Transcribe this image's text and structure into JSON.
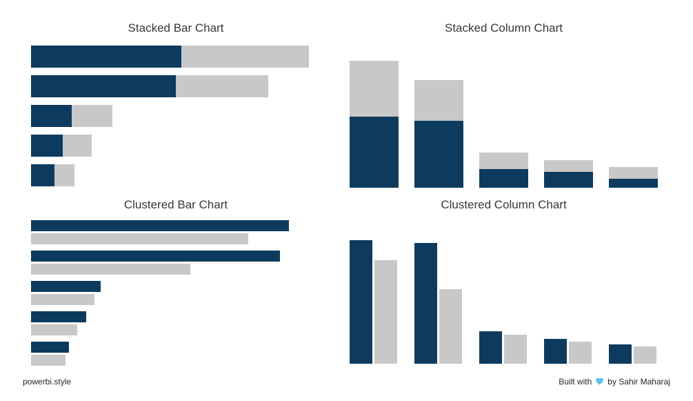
{
  "colors": {
    "navy": "#0c3b5f",
    "gray": "#c8c8c8",
    "background": "#ffffff"
  },
  "chart_data": [
    {
      "type": "bar",
      "variant": "stacked",
      "orientation": "horizontal",
      "title": "Stacked Bar Chart",
      "axis_max": 100,
      "grid": false,
      "legend": false,
      "series": [
        {
          "name": "navy",
          "color": "#0c3b5f",
          "values": [
            52,
            50,
            14,
            11,
            8
          ]
        },
        {
          "name": "gray",
          "color": "#c8c8c8",
          "values": [
            44,
            32,
            14,
            10,
            7
          ]
        }
      ]
    },
    {
      "type": "bar",
      "variant": "stacked",
      "orientation": "vertical",
      "title": "Stacked Column Chart",
      "axis_max": 100,
      "grid": false,
      "legend": false,
      "series": [
        {
          "name": "navy",
          "color": "#0c3b5f",
          "values": [
            54,
            51,
            14,
            12,
            7
          ]
        },
        {
          "name": "gray",
          "color": "#c8c8c8",
          "values": [
            43,
            31,
            13,
            9,
            9
          ]
        }
      ]
    },
    {
      "type": "bar",
      "variant": "clustered",
      "orientation": "horizontal",
      "title": "Clustered Bar Chart",
      "axis_max": 100,
      "grid": false,
      "legend": false,
      "series": [
        {
          "name": "navy",
          "color": "#0c3b5f",
          "values": [
            89,
            86,
            24,
            19,
            13
          ]
        },
        {
          "name": "gray",
          "color": "#c8c8c8",
          "values": [
            75,
            55,
            22,
            16,
            12
          ]
        }
      ]
    },
    {
      "type": "bar",
      "variant": "clustered",
      "orientation": "vertical",
      "title": "Clustered Column Chart",
      "axis_max": 100,
      "grid": false,
      "legend": false,
      "series": [
        {
          "name": "navy",
          "color": "#0c3b5f",
          "values": [
            94,
            92,
            25,
            19,
            15
          ]
        },
        {
          "name": "gray",
          "color": "#c8c8c8",
          "values": [
            79,
            57,
            22,
            17,
            13
          ]
        }
      ]
    }
  ],
  "footer": {
    "brand": "powerbi.style",
    "credit_prefix": "Built with",
    "credit_suffix": "by Sahir Maharaj",
    "heart_color": "#59c2f0"
  }
}
